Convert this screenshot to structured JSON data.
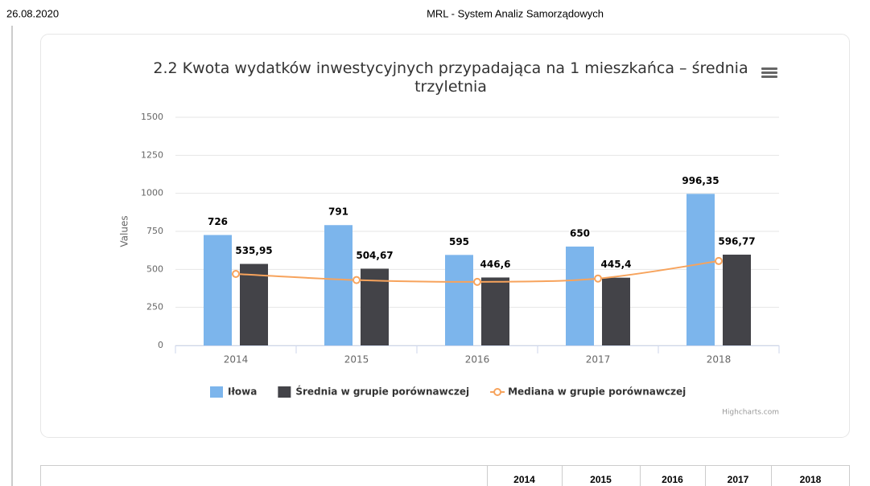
{
  "header": {
    "date": "26.08.2020",
    "title": "MRL - System Analiz Samorządowych"
  },
  "chart_data": {
    "type": "bar",
    "title": "2.2 Kwota wydatków inwestycyjnych przypadająca na 1 mieszkańca – średnia trzyletnia",
    "ylabel": "Values",
    "categories": [
      "2014",
      "2015",
      "2016",
      "2017",
      "2018"
    ],
    "series": [
      {
        "name": "Iłowa",
        "type": "bar",
        "color": "#7cb5ec",
        "values": [
          726,
          791,
          595,
          650,
          996.35
        ],
        "value_labels": [
          "726",
          "791",
          "595",
          "650",
          "996,35"
        ]
      },
      {
        "name": "Średnia w grupie porównawczej",
        "type": "bar",
        "color": "#434348",
        "values": [
          535.95,
          504.67,
          446.6,
          445.4,
          596.77
        ],
        "value_labels": [
          "535,95",
          "504,67",
          "446,6",
          "445,4",
          "596,77"
        ]
      },
      {
        "name": "Mediana w grupie porównawczej",
        "type": "line",
        "color": "#f7a35c",
        "values": [
          470,
          430,
          418,
          440,
          555
        ]
      }
    ],
    "ylim": [
      0,
      1500
    ],
    "yticks": [
      0,
      250,
      500,
      750,
      1000,
      1250,
      1500
    ],
    "grid": true,
    "legend": "bottom",
    "credit": "Highcharts.com"
  },
  "table": {
    "header": [
      "2014",
      "2015",
      "2016",
      "2017",
      "2018"
    ]
  }
}
